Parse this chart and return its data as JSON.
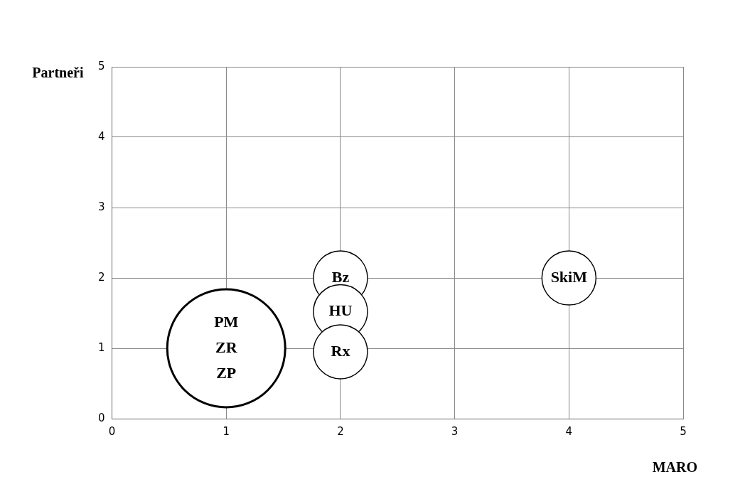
{
  "chart_data": {
    "type": "bubble",
    "xlabel": "MARO",
    "ylabel": "Partneři",
    "x": [
      1,
      2,
      2,
      2,
      4
    ],
    "values": [
      1,
      2,
      1.52,
      0.95,
      2
    ],
    "sizes": [
      1,
      0.21,
      0.21,
      0.21,
      0.21
    ],
    "value_labels": [
      "PM\nZR\nZP",
      "Bz",
      "HU",
      "Rx",
      "SkiM"
    ],
    "color": "#ffffff",
    "xlim": [
      0,
      5
    ],
    "xticks": [
      0,
      1,
      2,
      3,
      4,
      5
    ],
    "ylim": [
      0,
      5
    ],
    "yticks": [
      0,
      1,
      2,
      3,
      4,
      5
    ],
    "grid": true
  }
}
